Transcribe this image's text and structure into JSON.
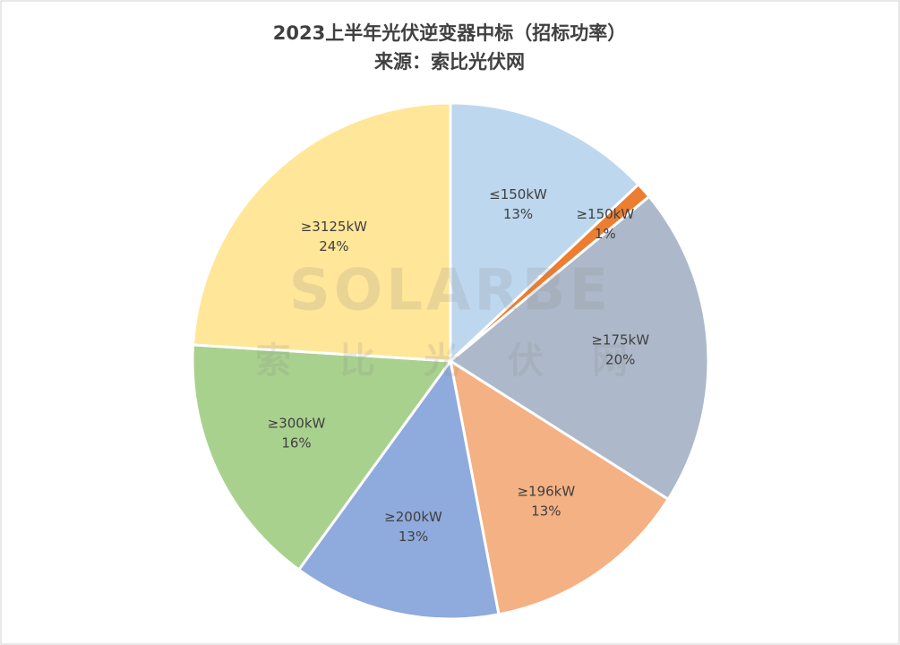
{
  "chart_data": {
    "type": "pie",
    "title": "2023上半年光伏逆变器中标（招标功率）",
    "subtitle": "来源：索比光伏网",
    "watermark": [
      "SOLARBE",
      "索 比 光 伏 网"
    ],
    "categories": [
      "≤150kW",
      "≥150kW",
      "≥175kW",
      "≥196kW",
      "≥200kW",
      "≥300kW",
      "≥3125kW"
    ],
    "values": [
      13,
      1,
      20,
      13,
      13,
      16,
      24
    ],
    "value_labels": [
      "13%",
      "1%",
      "20%",
      "13%",
      "13%",
      "16%",
      "24%"
    ],
    "colors": [
      "#bdd7ee",
      "#ed7d31",
      "#adb9ca",
      "#f4b183",
      "#8faadc",
      "#a9d18e",
      "#ffe699"
    ]
  }
}
